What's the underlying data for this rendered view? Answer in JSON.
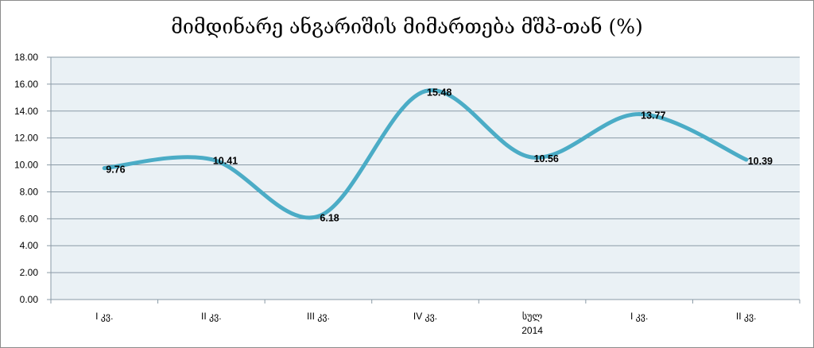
{
  "chart_data": {
    "type": "line",
    "title": "მიმდინარე ანგარიშის მიმართება მშპ-თან (%)",
    "categories": [
      "I კვ.",
      "II კვ.",
      "III კვ.",
      "IV კვ.",
      "სულ",
      "I კვ.",
      "II კვ."
    ],
    "category_sublabels": [
      "",
      "",
      "",
      "",
      "2014",
      "",
      ""
    ],
    "series": [
      {
        "values": [
          9.76,
          10.41,
          6.18,
          15.48,
          10.56,
          13.77,
          10.39
        ],
        "color": "#4bacc6"
      }
    ],
    "data_labels": [
      "9.76",
      "10.41",
      "6.18",
      "15.48",
      "10.56",
      "13.77",
      "10.39"
    ],
    "ylim": [
      0,
      18
    ],
    "y_ticks": [
      "0.00",
      "2.00",
      "4.00",
      "6.00",
      "8.00",
      "10.00",
      "12.00",
      "14.00",
      "16.00",
      "18.00"
    ],
    "grid": true,
    "plot_background": "#eaf1f5",
    "smooth": true
  }
}
